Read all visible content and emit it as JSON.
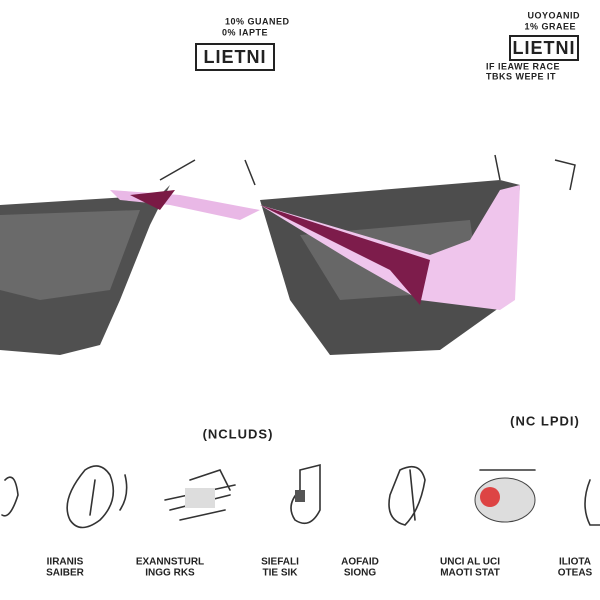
{
  "badges": [
    {
      "lines": [
        "10% GUANED",
        "0% IAPTE"
      ],
      "logo": "LIETNI"
    },
    {
      "lines": [
        "UOYOANID",
        "1% GRAEE"
      ],
      "logo": "LIETNI",
      "footer": [
        "IF IEAWE RACE",
        "TBKS WEPE IT"
      ]
    }
  ],
  "includes_title": "(NCLUDS)",
  "secondary_title": "(NC LPDI)",
  "items": [
    {
      "label": [
        "IIRANIS",
        "SAIBER"
      ]
    },
    {
      "label": [
        "EXANNSTURL",
        "INGG RKS"
      ]
    },
    {
      "label": [
        "SIEFALI",
        "TIE SIK"
      ]
    },
    {
      "label": [
        "AOFAID",
        "SIONG"
      ]
    },
    {
      "label": [
        "UNCI AL UCI",
        "MAOTI STAT"
      ]
    },
    {
      "label": [
        "ILIOTA",
        "OTEAS"
      ]
    }
  ]
}
